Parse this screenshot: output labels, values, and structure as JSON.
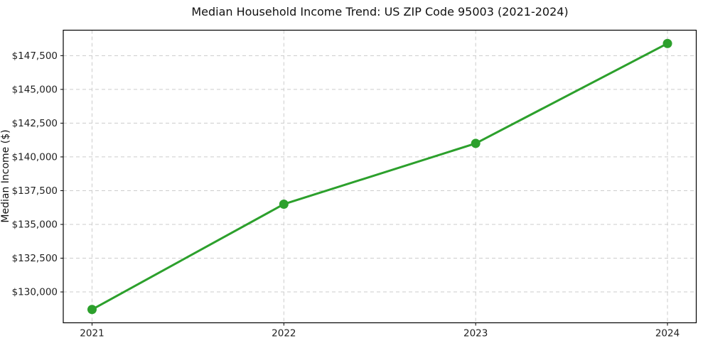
{
  "figure": {
    "title": "Median Household Income Trend: US ZIP Code 95003 (2021-2024)",
    "ylabel": "Median Income ($)"
  },
  "colors": {
    "line": "#2ca02c",
    "marker": "#2ca02c",
    "grid": "#cccccc",
    "spine": "#000000",
    "tick": "#000000",
    "background": "#ffffff",
    "text": "#111111"
  },
  "chart_data": {
    "type": "line",
    "title": "Median Household Income Trend: US ZIP Code 95003 (2021-2024)",
    "xlabel": "",
    "ylabel": "Median Income ($)",
    "x": [
      2021,
      2022,
      2023,
      2024
    ],
    "categories": [
      "2021",
      "2022",
      "2023",
      "2024"
    ],
    "values": [
      128700,
      136500,
      141000,
      148400
    ],
    "y_ticks": [
      130000,
      132500,
      135000,
      137500,
      140000,
      142500,
      145000,
      147500
    ],
    "y_tick_labels": [
      "$130,000",
      "$132,500",
      "$135,000",
      "$137,500",
      "$140,000",
      "$142,500",
      "$145,000",
      "$147,500"
    ],
    "x_tick_labels": [
      "2021",
      "2022",
      "2023",
      "2024"
    ],
    "xlim": [
      2020.85,
      2024.15
    ],
    "ylim": [
      127715,
      149385
    ],
    "grid": true,
    "grid_style": "dashed",
    "legend_position": "none",
    "marker": "circle"
  }
}
